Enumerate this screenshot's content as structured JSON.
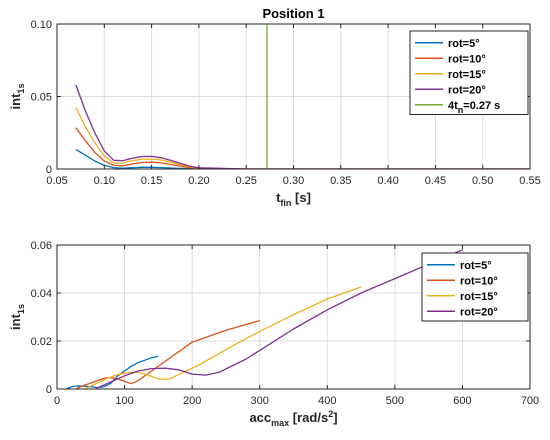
{
  "chart_data": [
    {
      "type": "line",
      "title": "Position 1",
      "xlabel": "t_fin [s]",
      "ylabel": "int_1s",
      "xlim": [
        0.05,
        0.55
      ],
      "ylim": [
        0,
        0.1
      ],
      "grid": true,
      "legend_position": "top-right",
      "xticks": [
        0.05,
        0.1,
        0.15,
        0.2,
        0.25,
        0.3,
        0.35,
        0.4,
        0.45,
        0.5,
        0.55
      ],
      "xticklabels": [
        "0.05",
        "0.10",
        "0.15",
        "0.20",
        "0.25",
        "0.30",
        "0.35",
        "0.40",
        "0.45",
        "0.50",
        "0.55"
      ],
      "yticks": [
        0,
        0.05,
        0.1
      ],
      "yticklabels": [
        "0",
        "0.05",
        "0.10"
      ],
      "series": [
        {
          "name": "rot=5°",
          "color": "#0072BD",
          "x": [
            0.07,
            0.08,
            0.09,
            0.1,
            0.11,
            0.12,
            0.13,
            0.14,
            0.15,
            0.16,
            0.17,
            0.18,
            0.19,
            0.2,
            0.25,
            0.3,
            0.4,
            0.5,
            0.55
          ],
          "y": [
            0.0135,
            0.0095,
            0.0055,
            0.0025,
            0.001,
            0.0006,
            0.0009,
            0.0012,
            0.0012,
            0.001,
            0.0007,
            0.0004,
            0.0002,
            0.0001,
            0,
            0,
            0,
            0,
            0
          ]
        },
        {
          "name": "rot=10°",
          "color": "#D95319",
          "x": [
            0.07,
            0.08,
            0.09,
            0.1,
            0.11,
            0.12,
            0.13,
            0.14,
            0.15,
            0.16,
            0.17,
            0.18,
            0.19,
            0.2,
            0.25,
            0.3,
            0.4,
            0.5,
            0.55
          ],
          "y": [
            0.0285,
            0.0195,
            0.0115,
            0.0055,
            0.0025,
            0.0022,
            0.0035,
            0.0045,
            0.0047,
            0.0042,
            0.0032,
            0.002,
            0.001,
            0.0004,
            0,
            0,
            0,
            0,
            0
          ]
        },
        {
          "name": "rot=15°",
          "color": "#EDB120",
          "x": [
            0.07,
            0.08,
            0.09,
            0.1,
            0.11,
            0.12,
            0.13,
            0.14,
            0.15,
            0.16,
            0.17,
            0.18,
            0.19,
            0.2,
            0.25,
            0.3,
            0.4,
            0.5,
            0.55
          ],
          "y": [
            0.0425,
            0.029,
            0.018,
            0.009,
            0.004,
            0.0042,
            0.0058,
            0.0068,
            0.0069,
            0.0062,
            0.0048,
            0.003,
            0.0015,
            0.0006,
            0,
            0,
            0,
            0,
            0
          ]
        },
        {
          "name": "rot=20°",
          "color": "#7E2F8E",
          "x": [
            0.07,
            0.08,
            0.09,
            0.1,
            0.11,
            0.12,
            0.13,
            0.14,
            0.15,
            0.16,
            0.17,
            0.18,
            0.19,
            0.2,
            0.25,
            0.3,
            0.4,
            0.5,
            0.55
          ],
          "y": [
            0.058,
            0.04,
            0.025,
            0.0125,
            0.006,
            0.0058,
            0.0075,
            0.0086,
            0.0087,
            0.0078,
            0.0061,
            0.0039,
            0.002,
            0.0008,
            0,
            0,
            0,
            0,
            0
          ]
        },
        {
          "name": "4t_n=0.27 s",
          "color": "#77AC30",
          "x": [
            0.272,
            0.272
          ],
          "y": [
            0,
            0.1
          ]
        }
      ]
    },
    {
      "type": "line",
      "title": "",
      "xlabel": "acc_max [rad/s^2]",
      "ylabel": "int_1s",
      "xlim": [
        0,
        700
      ],
      "ylim": [
        0,
        0.06
      ],
      "grid": true,
      "legend_position": "top-right",
      "xticks": [
        0,
        100,
        200,
        300,
        400,
        500,
        600,
        700
      ],
      "xticklabels": [
        "0",
        "100",
        "200",
        "300",
        "400",
        "500",
        "600",
        "700"
      ],
      "yticks": [
        0,
        0.02,
        0.04,
        0.06
      ],
      "yticklabels": [
        "0",
        "0.02",
        "0.04",
        "0.06"
      ],
      "series": [
        {
          "name": "rot=5°",
          "color": "#0072BD",
          "x": [
            14,
            22,
            30,
            40,
            52,
            60,
            70,
            80,
            90,
            100,
            110,
            120,
            130,
            140,
            150
          ],
          "y": [
            0.0001,
            0.001,
            0.0013,
            0.0012,
            0.0009,
            0.0006,
            0.001,
            0.0025,
            0.0055,
            0.0075,
            0.0095,
            0.011,
            0.012,
            0.013,
            0.0137
          ]
        },
        {
          "name": "rot=10°",
          "color": "#D95319",
          "x": [
            29,
            40,
            50,
            60,
            70,
            80,
            90,
            100,
            110,
            120,
            130,
            140,
            160,
            200,
            250,
            300
          ],
          "y": [
            0.0002,
            0.0015,
            0.0025,
            0.0035,
            0.0045,
            0.0047,
            0.0042,
            0.0032,
            0.0022,
            0.0035,
            0.0055,
            0.0075,
            0.0115,
            0.0195,
            0.0245,
            0.0285
          ]
        },
        {
          "name": "rot=15°",
          "color": "#EDB120",
          "x": [
            43,
            60,
            75,
            90,
            105,
            120,
            135,
            150,
            165,
            180,
            210,
            260,
            300,
            350,
            400,
            450
          ],
          "y": [
            0.0003,
            0.0025,
            0.0045,
            0.006,
            0.0068,
            0.0069,
            0.0058,
            0.0042,
            0.004,
            0.006,
            0.01,
            0.018,
            0.024,
            0.031,
            0.0375,
            0.0425
          ]
        },
        {
          "name": "rot=20°",
          "color": "#7E2F8E",
          "x": [
            58,
            80,
            100,
            120,
            140,
            160,
            180,
            200,
            220,
            240,
            280,
            350,
            400,
            450,
            500,
            550,
            600
          ],
          "y": [
            0.0003,
            0.003,
            0.0055,
            0.0075,
            0.0085,
            0.0087,
            0.008,
            0.0062,
            0.0058,
            0.007,
            0.0125,
            0.025,
            0.033,
            0.04,
            0.046,
            0.052,
            0.058
          ]
        }
      ]
    }
  ]
}
